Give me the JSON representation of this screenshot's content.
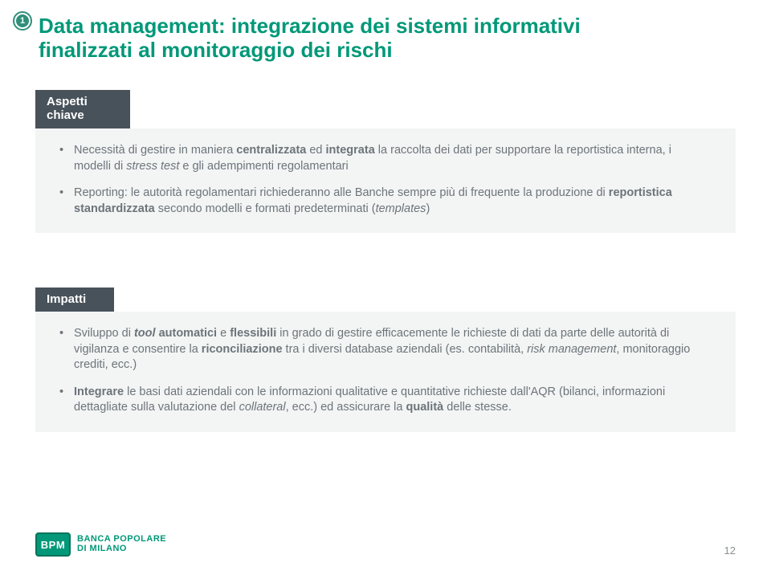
{
  "badge_number": "1",
  "title_line1": "Data management: integrazione dei sistemi informativi",
  "title_line2": "finalizzati al monitoraggio dei rischi",
  "section1": {
    "header_line1": "Aspetti",
    "header_line2": "chiave",
    "bullets": {
      "b1": {
        "pre": "Necessità di gestire in maniera ",
        "bold1": "centralizzata",
        "mid1": " ed ",
        "bold2": "integrata",
        "mid2": " la raccolta dei dati per supportare la reportistica interna, i modelli di ",
        "ital1": "stress test",
        "post": " e gli adempimenti regolamentari"
      },
      "b2": {
        "pre": "Reporting: le autorità regolamentari richiederanno alle Banche sempre più di frequente la produzione di ",
        "bold1": "reportistica standardizzata",
        "mid": " secondo modelli e formati predeterminati (",
        "ital1": "templates",
        "post": ")"
      }
    }
  },
  "section2": {
    "header": "Impatti",
    "bullets": {
      "b1": {
        "pre": "Sviluppo di ",
        "boldital1": "tool",
        "bold1": " automatici",
        "mid1": " e ",
        "bold2": "flessibili",
        "mid2": " in grado di gestire efficacemente le richieste di dati da parte delle autorità di vigilanza e consentire la ",
        "bold3": "riconciliazione",
        "mid3": " tra i diversi database aziendali (es. contabilità, ",
        "ital1": "risk management",
        "post": ", monitoraggio crediti, ecc.)"
      },
      "b2": {
        "bold1": "Integrare",
        "mid1": " le basi dati aziendali con le informazioni qualitative e quantitative richieste dall'AQR (bilanci, informazioni dettagliate sulla valutazione del ",
        "ital1": "collateral",
        "mid2": ", ecc.) ed assicurare la ",
        "bold2": "qualità",
        "post": " delle stesse."
      }
    }
  },
  "footer": {
    "logo_badge": "BPM",
    "logo_line1": "BANCA POPOLARE",
    "logo_line2": "DI MILANO",
    "page_number": "12"
  },
  "colors": {
    "brand_green": "#009878",
    "dark_header": "#48525a",
    "body_bg": "#f3f4f4",
    "body_text": "#6c757a"
  }
}
